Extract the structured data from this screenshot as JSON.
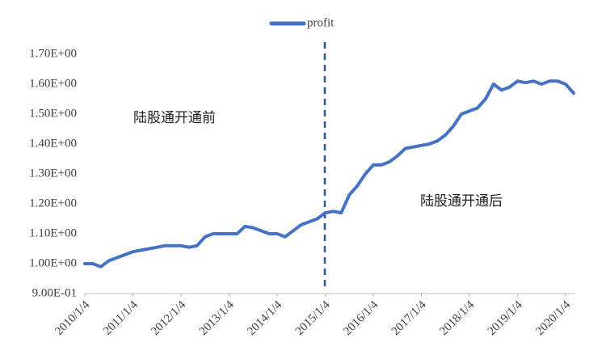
{
  "chart_data": {
    "type": "line",
    "categories": [
      "2010/1/4",
      null,
      null,
      null,
      null,
      null,
      "2011/1/4",
      null,
      null,
      null,
      null,
      null,
      "2012/1/4",
      null,
      null,
      null,
      null,
      null,
      "2013/1/4",
      null,
      null,
      null,
      null,
      null,
      "2014/1/4",
      null,
      null,
      null,
      null,
      null,
      "2015/1/4",
      null,
      null,
      null,
      null,
      null,
      "2016/1/4",
      null,
      null,
      null,
      null,
      null,
      "2017/1/4",
      null,
      null,
      null,
      null,
      null,
      "2018/1/4",
      null,
      null,
      null,
      null,
      null,
      "2019/1/4",
      null,
      null,
      null,
      null,
      null,
      "2020/1/4",
      null
    ],
    "series": [
      {
        "name": "profit",
        "color": "#4472c4",
        "values": [
          1.0,
          1.0,
          0.99,
          1.01,
          1.02,
          1.03,
          1.04,
          1.045,
          1.05,
          1.055,
          1.06,
          1.06,
          1.06,
          1.055,
          1.06,
          1.09,
          1.1,
          1.1,
          1.1,
          1.1,
          1.125,
          1.12,
          1.11,
          1.1,
          1.1,
          1.09,
          1.11,
          1.13,
          1.14,
          1.15,
          1.17,
          1.175,
          1.17,
          1.23,
          1.26,
          1.3,
          1.33,
          1.33,
          1.34,
          1.36,
          1.385,
          1.39,
          1.395,
          1.4,
          1.41,
          1.43,
          1.46,
          1.5,
          1.51,
          1.52,
          1.55,
          1.6,
          1.58,
          1.59,
          1.61,
          1.605,
          1.61,
          1.6,
          1.61,
          1.61,
          1.6,
          1.57
        ]
      }
    ],
    "ylim": [
      0.9,
      1.7
    ],
    "yticks": [
      {
        "value": 0.9,
        "label": "9.00E-01"
      },
      {
        "value": 1.0,
        "label": "1.00E+00"
      },
      {
        "value": 1.1,
        "label": "1.10E+00"
      },
      {
        "value": 1.2,
        "label": "1.20E+00"
      },
      {
        "value": 1.3,
        "label": "1.30E+00"
      },
      {
        "value": 1.4,
        "label": "1.40E+00"
      },
      {
        "value": 1.5,
        "label": "1.50E+00"
      },
      {
        "value": 1.6,
        "label": "1.60E+00"
      },
      {
        "value": 1.7,
        "label": "1.70E+00"
      }
    ],
    "annotations": [
      "陆股通开通前",
      "陆股通开通后"
    ],
    "legend": "top"
  }
}
